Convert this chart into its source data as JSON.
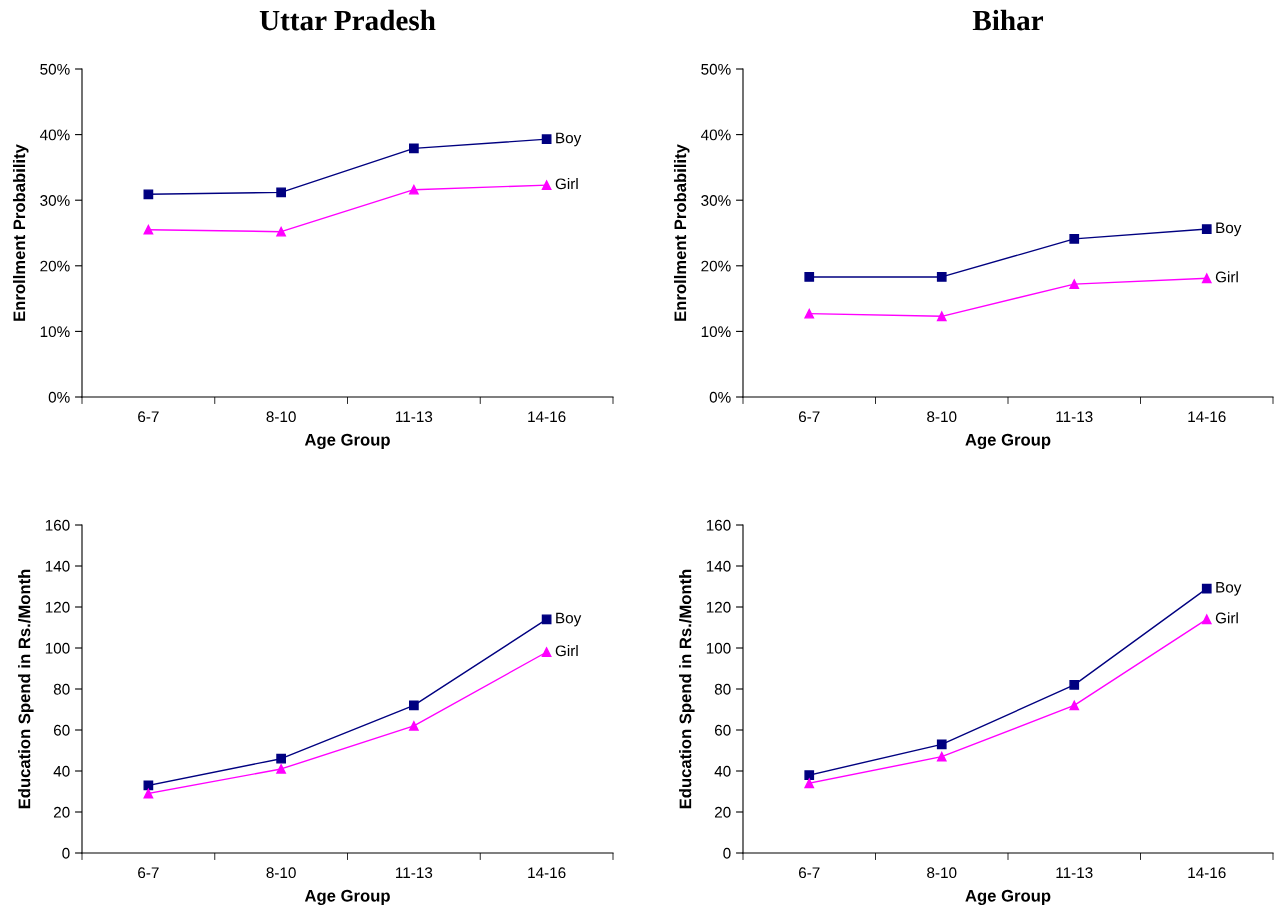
{
  "chart_data": [
    {
      "type": "line",
      "title": "Uttar Pradesh",
      "xlabel": "Age Group",
      "ylabel": "Enrollment Probability",
      "categories": [
        "6-7",
        "8-10",
        "11-13",
        "14-16"
      ],
      "ylim": [
        0,
        50
      ],
      "yticks": [
        {
          "value": 0,
          "label": "0%"
        },
        {
          "value": 10,
          "label": "10%"
        },
        {
          "value": 20,
          "label": "20%"
        },
        {
          "value": 30,
          "label": "30%"
        },
        {
          "value": 40,
          "label": "40%"
        },
        {
          "value": 50,
          "label": "50%"
        }
      ],
      "grid": false,
      "legend": false,
      "series": [
        {
          "name": "Boy",
          "color": "#000080",
          "marker": "square",
          "values": [
            30.9,
            31.2,
            37.9,
            39.3
          ]
        },
        {
          "name": "Girl",
          "color": "#ff00ff",
          "marker": "triangle",
          "values": [
            25.5,
            25.2,
            31.6,
            32.3
          ]
        }
      ]
    },
    {
      "type": "line",
      "title": "Bihar",
      "xlabel": "Age Group",
      "ylabel": "Enrollment Probability",
      "categories": [
        "6-7",
        "8-10",
        "11-13",
        "14-16"
      ],
      "ylim": [
        0,
        50
      ],
      "yticks": [
        {
          "value": 0,
          "label": "0%"
        },
        {
          "value": 10,
          "label": "10%"
        },
        {
          "value": 20,
          "label": "20%"
        },
        {
          "value": 30,
          "label": "30%"
        },
        {
          "value": 40,
          "label": "40%"
        },
        {
          "value": 50,
          "label": "50%"
        }
      ],
      "grid": false,
      "legend": false,
      "series": [
        {
          "name": "Boy",
          "color": "#000080",
          "marker": "square",
          "values": [
            18.3,
            18.3,
            24.1,
            25.6
          ]
        },
        {
          "name": "Girl",
          "color": "#ff00ff",
          "marker": "triangle",
          "values": [
            12.7,
            12.3,
            17.2,
            18.1
          ]
        }
      ]
    },
    {
      "type": "line",
      "xlabel": "Age Group",
      "ylabel": "Education Spend in Rs./Month",
      "categories": [
        "6-7",
        "8-10",
        "11-13",
        "14-16"
      ],
      "ylim": [
        0,
        160
      ],
      "yticks": [
        0,
        20,
        40,
        60,
        80,
        100,
        120,
        140,
        160
      ],
      "grid": false,
      "legend": false,
      "series": [
        {
          "name": "Boy",
          "color": "#000080",
          "marker": "square",
          "values": [
            33,
            46,
            72,
            114
          ]
        },
        {
          "name": "Girl",
          "color": "#ff00ff",
          "marker": "triangle",
          "values": [
            29,
            41,
            62,
            98
          ]
        }
      ]
    },
    {
      "type": "line",
      "xlabel": "Age Group",
      "ylabel": "Education Spend in Rs./Month",
      "categories": [
        "6-7",
        "8-10",
        "11-13",
        "14-16"
      ],
      "ylim": [
        0,
        160
      ],
      "yticks": [
        0,
        20,
        40,
        60,
        80,
        100,
        120,
        140,
        160
      ],
      "grid": false,
      "legend": false,
      "series": [
        {
          "name": "Boy",
          "color": "#000080",
          "marker": "square",
          "values": [
            38,
            53,
            82,
            129
          ]
        },
        {
          "name": "Girl",
          "color": "#ff00ff",
          "marker": "triangle",
          "values": [
            34,
            47,
            72,
            114
          ]
        }
      ]
    }
  ]
}
